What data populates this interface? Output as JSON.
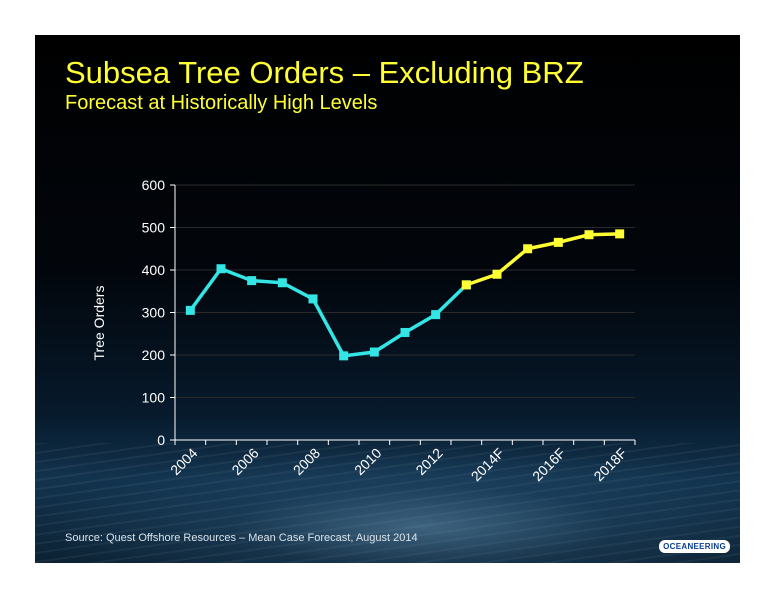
{
  "title": "Subsea Tree Orders – Excluding BRZ",
  "subtitle": "Forecast at Historically High Levels",
  "source": "Source:  Quest Offshore Resources – Mean Case Forecast, August 2014",
  "logo": "OCEANEERING",
  "colors": {
    "background": "#000000",
    "title": "#ffff33",
    "historical": "#33e5e5",
    "forecast": "#ffff33",
    "axis": "#ffffff"
  },
  "chart_data": {
    "type": "line",
    "title": "Subsea Tree Orders – Excluding BRZ",
    "subtitle": "Forecast at Historically High Levels",
    "xlabel": "",
    "ylabel": "Tree Orders",
    "x": [
      "2004",
      "2005",
      "2006",
      "2007",
      "2008",
      "2009",
      "2010",
      "2011",
      "2012",
      "2013",
      "2014F",
      "2015F",
      "2016F",
      "2017F",
      "2018F"
    ],
    "x_tick_labels": [
      "2004",
      "2006",
      "2008",
      "2010",
      "2012",
      "2014F",
      "2016F",
      "2018F"
    ],
    "ylim": [
      0,
      600
    ],
    "y_ticks": [
      0,
      100,
      200,
      300,
      400,
      500,
      600
    ],
    "grid": true,
    "series": [
      {
        "color": "#33e5e5",
        "x": [
          "2004",
          "2005",
          "2006",
          "2007",
          "2008",
          "2009",
          "2010",
          "2011",
          "2012",
          "2013"
        ],
        "values": [
          305,
          403,
          375,
          370,
          332,
          198,
          207,
          253,
          295,
          365
        ]
      },
      {
        "color": "#ffff33",
        "x": [
          "2013",
          "2014F",
          "2015F",
          "2016F",
          "2017F",
          "2018F"
        ],
        "values": [
          365,
          390,
          450,
          465,
          483,
          485
        ]
      }
    ]
  }
}
